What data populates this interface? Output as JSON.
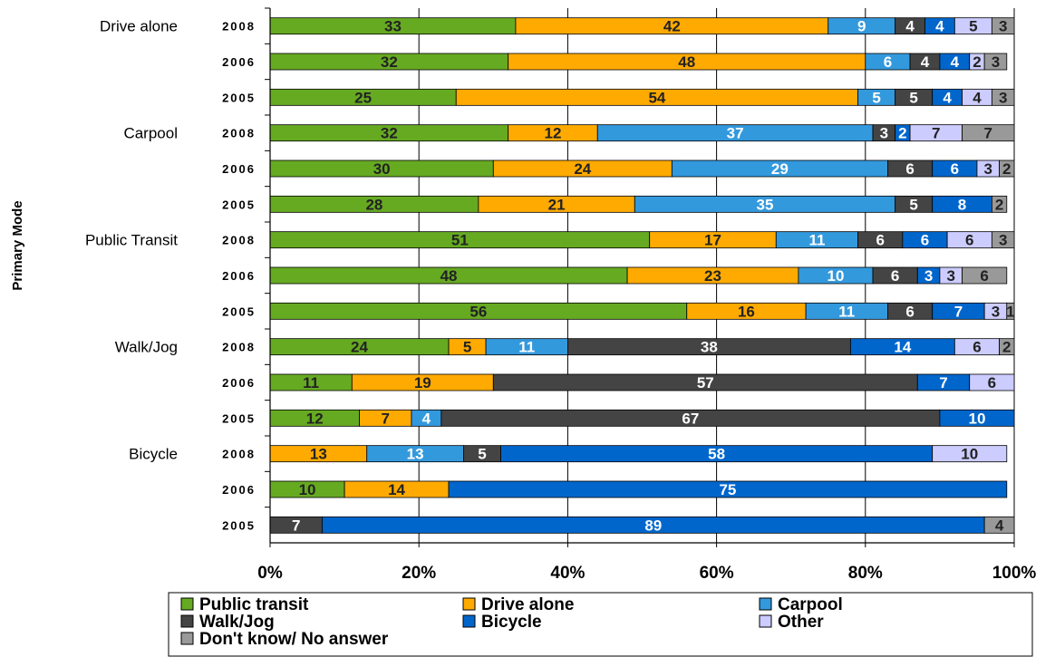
{
  "chart_data": {
    "type": "bar",
    "orientation": "horizontal",
    "stacked": true,
    "ylabel": "Primary Mode",
    "xlim": [
      0,
      100
    ],
    "x_ticks": [
      "0%",
      "20%",
      "40%",
      "60%",
      "80%",
      "100%"
    ],
    "grid": "vertical",
    "legend_position": "bottom",
    "series": [
      {
        "name": "Public transit",
        "color": "#66aa22"
      },
      {
        "name": "Drive alone",
        "color": "#ffaa00"
      },
      {
        "name": "Carpool",
        "color": "#3399dd"
      },
      {
        "name": "Walk/Jog",
        "color": "#444444"
      },
      {
        "name": "Bicycle",
        "color": "#0066cc"
      },
      {
        "name": "Other",
        "color": "#ccccff"
      },
      {
        "name": "Don't know/ No answer",
        "color": "#999999"
      }
    ],
    "groups": [
      {
        "name": "Drive alone",
        "rows": [
          {
            "year": "2008",
            "values": [
              33,
              42,
              9,
              4,
              4,
              5,
              3
            ]
          },
          {
            "year": "2006",
            "values": [
              32,
              48,
              6,
              4,
              4,
              2,
              3
            ]
          },
          {
            "year": "2005",
            "values": [
              25,
              54,
              5,
              5,
              4,
              4,
              3
            ]
          }
        ]
      },
      {
        "name": "Carpool",
        "rows": [
          {
            "year": "2008",
            "values": [
              32,
              12,
              37,
              3,
              2,
              7,
              7
            ]
          },
          {
            "year": "2006",
            "values": [
              30,
              24,
              29,
              6,
              6,
              3,
              2
            ]
          },
          {
            "year": "2005",
            "values": [
              28,
              21,
              35,
              5,
              8,
              0,
              2
            ]
          }
        ]
      },
      {
        "name": "Public Transit",
        "rows": [
          {
            "year": "2008",
            "values": [
              51,
              17,
              11,
              6,
              6,
              6,
              3
            ]
          },
          {
            "year": "2006",
            "values": [
              48,
              23,
              10,
              6,
              3,
              3,
              6
            ]
          },
          {
            "year": "2005",
            "values": [
              56,
              16,
              11,
              6,
              7,
              3,
              1
            ]
          }
        ]
      },
      {
        "name": "Walk/Jog",
        "rows": [
          {
            "year": "2008",
            "values": [
              24,
              5,
              11,
              38,
              14,
              6,
              2
            ]
          },
          {
            "year": "2006",
            "values": [
              11,
              19,
              0,
              57,
              7,
              6,
              0
            ]
          },
          {
            "year": "2005",
            "values": [
              12,
              7,
              4,
              67,
              10,
              0,
              0
            ]
          }
        ]
      },
      {
        "name": "Bicycle",
        "rows": [
          {
            "year": "2008",
            "values": [
              0,
              13,
              13,
              5,
              58,
              10,
              0
            ]
          },
          {
            "year": "2006",
            "values": [
              10,
              14,
              0,
              0,
              75,
              0,
              0
            ]
          },
          {
            "year": "2005",
            "values": [
              0,
              0,
              0,
              7,
              89,
              0,
              4
            ]
          }
        ]
      }
    ]
  }
}
